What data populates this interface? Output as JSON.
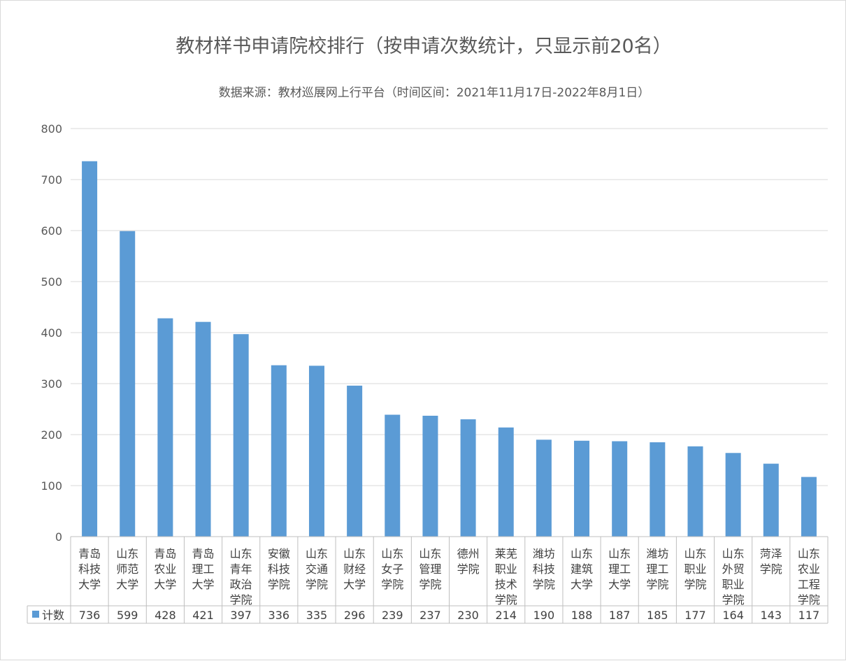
{
  "chart_data": {
    "type": "bar",
    "title": "教材样书申请院校排行（按申请次数统计，只显示前20名）",
    "subtitle": "数据来源：教材巡展网上行平台（时间区间：2021年11月17日-2022年8月1日）",
    "ylim": [
      0,
      800
    ],
    "yticks": [
      0,
      100,
      200,
      300,
      400,
      500,
      600,
      700,
      800
    ],
    "grid": true,
    "legend_placement": "data-table",
    "bar_color": "#5b9bd5",
    "categories": [
      [
        "青岛",
        "科技",
        "大学"
      ],
      [
        "山东",
        "师范",
        "大学"
      ],
      [
        "青岛",
        "农业",
        "大学"
      ],
      [
        "青岛",
        "理工",
        "大学"
      ],
      [
        "山东",
        "青年",
        "政治",
        "学院"
      ],
      [
        "安徽",
        "科技",
        "学院"
      ],
      [
        "山东",
        "交通",
        "学院"
      ],
      [
        "山东",
        "财经",
        "大学"
      ],
      [
        "山东",
        "女子",
        "学院"
      ],
      [
        "山东",
        "管理",
        "学院"
      ],
      [
        "德州",
        "学院"
      ],
      [
        "莱芜",
        "职业",
        "技术",
        "学院"
      ],
      [
        "潍坊",
        "科技",
        "学院"
      ],
      [
        "山东",
        "建筑",
        "大学"
      ],
      [
        "山东",
        "理工",
        "大学"
      ],
      [
        "潍坊",
        "理工",
        "学院"
      ],
      [
        "山东",
        "职业",
        "学院"
      ],
      [
        "山东",
        "外贸",
        "职业",
        "学院"
      ],
      [
        "菏泽",
        "学院"
      ],
      [
        "山东",
        "农业",
        "工程",
        "学院"
      ]
    ],
    "series": [
      {
        "name": "计数",
        "values": [
          736,
          599,
          428,
          421,
          397,
          336,
          335,
          296,
          239,
          237,
          230,
          214,
          190,
          188,
          187,
          185,
          177,
          164,
          143,
          117
        ]
      }
    ]
  }
}
